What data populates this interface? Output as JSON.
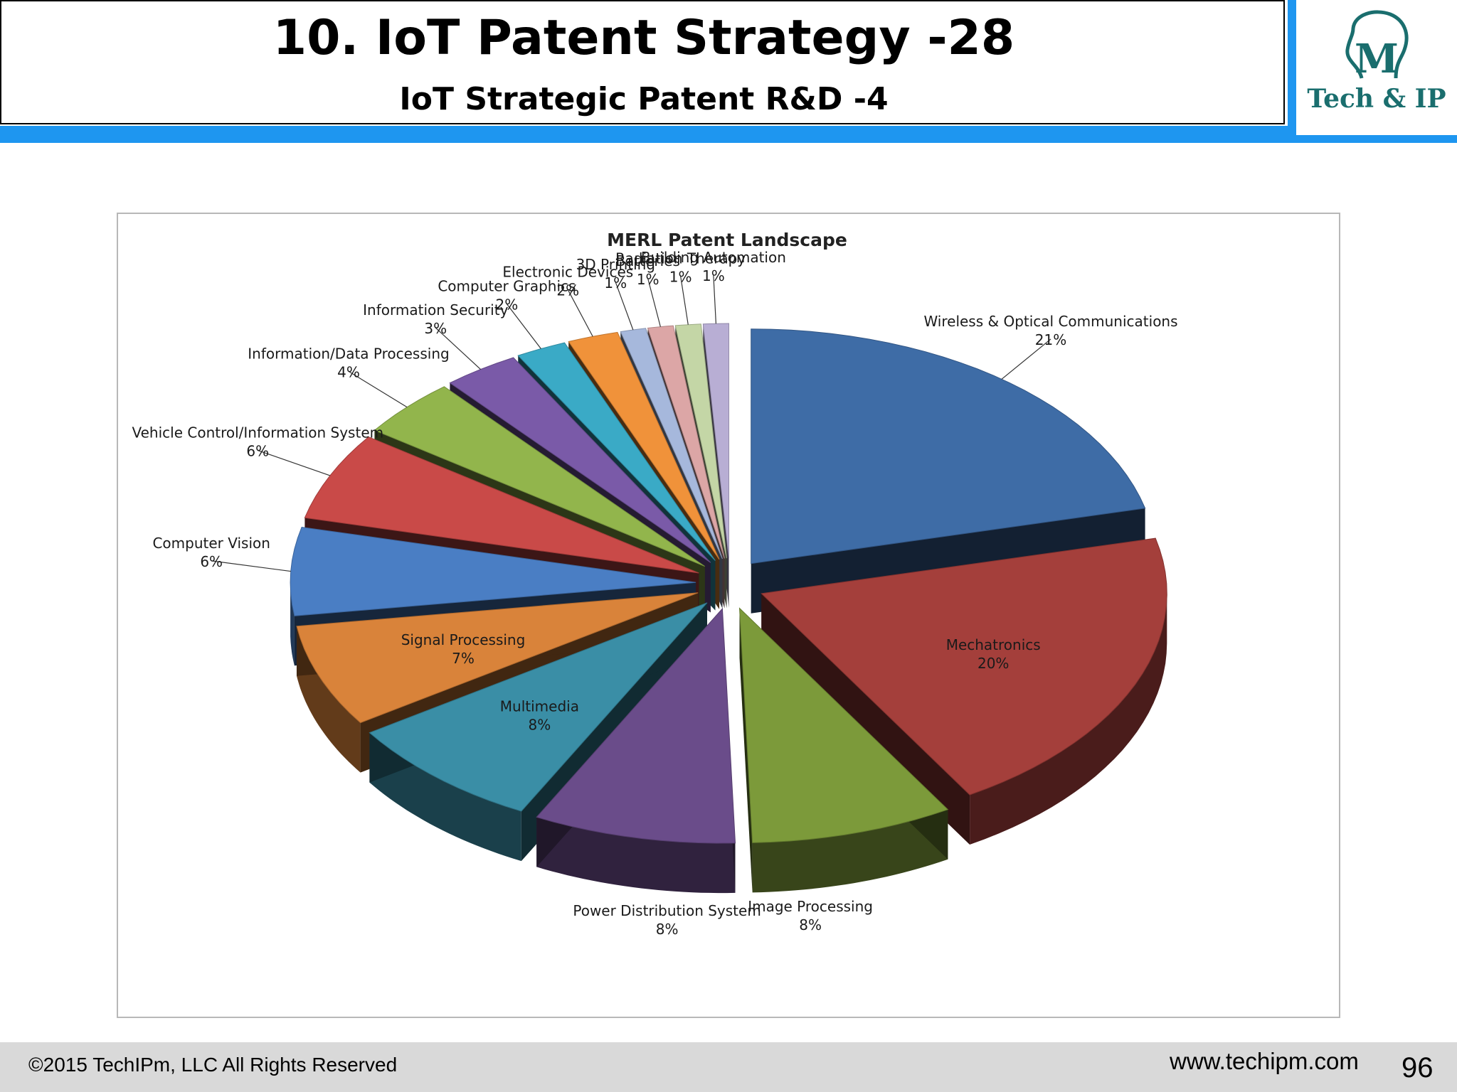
{
  "slide": {
    "title": "10. IoT Patent Strategy -28",
    "subtitle": "IoT Strategic Patent R&D -4",
    "logo_text": "Tech & IP",
    "logo_mark": "M",
    "copyright": "©2015 TechIPm, LLC All Rights Reserved",
    "website": "www.techipm.com",
    "page_number": "96"
  },
  "colors": {
    "accent_bar": "#1e96f0",
    "logo_teal": "#1a6e6e"
  },
  "chart_data": {
    "type": "pie",
    "title": "MERL Patent Landscape",
    "exploded": true,
    "three_d": true,
    "slices": [
      {
        "label": "Wireless & Optical Communications",
        "value": 21,
        "pct_label": "21%",
        "color": "#3e6ca6"
      },
      {
        "label": "Mechatronics",
        "value": 20,
        "pct_label": "20%",
        "color": "#a43f3b"
      },
      {
        "label": "Image Processing",
        "value": 8,
        "pct_label": "8%",
        "color": "#7c9a3a"
      },
      {
        "label": "Power Distribution System",
        "value": 8,
        "pct_label": "8%",
        "color": "#6a4c8a"
      },
      {
        "label": "Multimedia",
        "value": 8,
        "pct_label": "8%",
        "color": "#3a8ea6"
      },
      {
        "label": "Signal Processing",
        "value": 7,
        "pct_label": "7%",
        "color": "#d9833a"
      },
      {
        "label": "Computer Vision",
        "value": 6,
        "pct_label": "6%",
        "color": "#4a7ec4"
      },
      {
        "label": "Vehicle Control/Information System",
        "value": 6,
        "pct_label": "6%",
        "color": "#c94a48"
      },
      {
        "label": "Information/Data Processing",
        "value": 4,
        "pct_label": "4%",
        "color": "#92b54c"
      },
      {
        "label": "Information Security",
        "value": 3,
        "pct_label": "3%",
        "color": "#7a5aa8"
      },
      {
        "label": "Computer Graphics",
        "value": 2,
        "pct_label": "2%",
        "color": "#3aaac6"
      },
      {
        "label": "Electronic Devices",
        "value": 2,
        "pct_label": "2%",
        "color": "#f0923a"
      },
      {
        "label": "3D Printing",
        "value": 1,
        "pct_label": "1%",
        "color": "#a6b8dc"
      },
      {
        "label": "Batteries",
        "value": 1,
        "pct_label": "1%",
        "color": "#dca6a6"
      },
      {
        "label": "Radiation Therapy",
        "value": 1,
        "pct_label": "1%",
        "color": "#c4d6a6"
      },
      {
        "label": "Building Automation",
        "value": 1,
        "pct_label": "1%",
        "color": "#b8aed4"
      }
    ]
  }
}
